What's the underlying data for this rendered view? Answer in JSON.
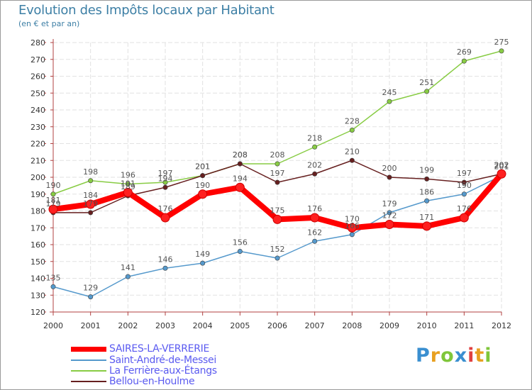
{
  "header": {
    "title": "Evolution des Impôts locaux par Habitant",
    "subtitle": "(en € et par an)"
  },
  "logo": {
    "letters": [
      "P",
      "r",
      "o",
      "x",
      "i",
      "t",
      "i"
    ],
    "colors": [
      "#3a8fd0",
      "#e8a020",
      "#7fc63a",
      "#3a8fd0",
      "#e04040",
      "#e8a020",
      "#7fc63a"
    ]
  },
  "chart_data": {
    "type": "line",
    "x": [
      "2000",
      "2001",
      "2002",
      "2003",
      "2004",
      "2005",
      "2006",
      "2007",
      "2008",
      "2009",
      "2010",
      "2011",
      "2012"
    ],
    "ylim": [
      120,
      280
    ],
    "yticks": [
      120,
      130,
      140,
      150,
      160,
      170,
      180,
      190,
      200,
      210,
      220,
      230,
      240,
      250,
      260,
      270,
      280
    ],
    "grid": true,
    "legend": "bottom-left",
    "series": [
      {
        "name": "SAIRES-LA-VERRERIE",
        "color": "#ff0000",
        "label_color": "#555555",
        "values": [
          181,
          184,
          191,
          176,
          190,
          194,
          175,
          176,
          170,
          172,
          171,
          176,
          202
        ]
      },
      {
        "name": "Saint-André-de-Messei",
        "color": "#5599cc",
        "label_color": "#555555",
        "values": [
          135,
          129,
          141,
          146,
          149,
          156,
          152,
          162,
          166,
          179,
          186,
          190,
          201
        ]
      },
      {
        "name": "La Ferrière-aux-Étangs",
        "color": "#88cc44",
        "label_color": "#555555",
        "values": [
          190,
          198,
          196,
          197,
          201,
          208,
          208,
          218,
          228,
          245,
          251,
          269,
          275
        ]
      },
      {
        "name": "Bellou-en-Houlme",
        "color": "#661f1f",
        "label_color": "#555555",
        "values": [
          179,
          179,
          189,
          194,
          201,
          208,
          197,
          202,
          210,
          200,
          199,
          197,
          202
        ]
      }
    ]
  }
}
